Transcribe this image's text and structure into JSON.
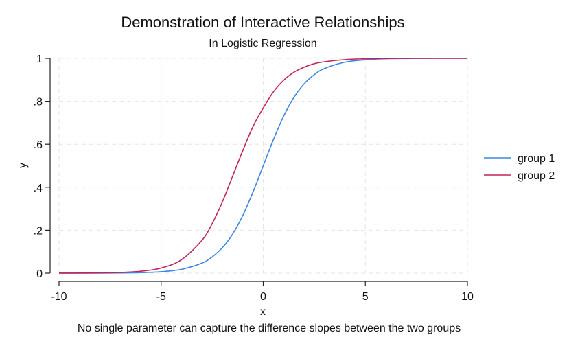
{
  "chart_data": {
    "type": "line",
    "title": "Demonstration of Interactive Relationships",
    "subtitle": "In Logistic Regression",
    "xlabel": "x",
    "ylabel": "y",
    "note": "No single parameter can capture the difference slopes between the two groups",
    "xlim": [
      -10,
      10
    ],
    "ylim": [
      0,
      1
    ],
    "x_ticks": [
      -10,
      -5,
      0,
      5,
      10
    ],
    "x_tick_labels": [
      "-10",
      "-5",
      "0",
      "5",
      "10"
    ],
    "y_ticks": [
      0,
      0.2,
      0.4,
      0.6,
      0.8,
      1
    ],
    "y_tick_labels": [
      "0",
      ".2",
      ".4",
      ".6",
      ".8",
      "1"
    ],
    "grid": true,
    "legend_position": "right",
    "series": [
      {
        "name": "group 1",
        "color": "#3a86e0",
        "x": [
          -10,
          -9,
          -8,
          -7,
          -6,
          -5,
          -4,
          -3,
          -2.5,
          -2,
          -1.5,
          -1,
          -0.5,
          0,
          0.5,
          1,
          1.5,
          2,
          2.5,
          3,
          4,
          5,
          6,
          7,
          8,
          9,
          10
        ],
        "y": [
          5e-05,
          0.00012,
          0.00034,
          0.0009,
          0.0025,
          0.0067,
          0.018,
          0.047,
          0.076,
          0.119,
          0.182,
          0.269,
          0.378,
          0.5,
          0.622,
          0.731,
          0.818,
          0.881,
          0.924,
          0.953,
          0.982,
          0.993,
          0.998,
          0.999,
          1.0,
          1.0,
          1.0
        ]
      },
      {
        "name": "group 2",
        "color": "#c0245e",
        "x": [
          -10,
          -9,
          -8,
          -7,
          -6,
          -5,
          -4,
          -3,
          -2.5,
          -2,
          -1.5,
          -1,
          -0.5,
          0,
          0.5,
          1,
          1.5,
          2,
          2.5,
          3,
          4,
          5,
          6,
          7,
          8,
          9,
          10
        ],
        "y": [
          0.00017,
          0.0005,
          0.0012,
          0.0033,
          0.009,
          0.024,
          0.063,
          0.153,
          0.231,
          0.332,
          0.451,
          0.571,
          0.683,
          0.769,
          0.844,
          0.898,
          0.935,
          0.959,
          0.975,
          0.984,
          0.994,
          0.998,
          0.999,
          1.0,
          1.0,
          1.0,
          1.0
        ]
      }
    ]
  }
}
